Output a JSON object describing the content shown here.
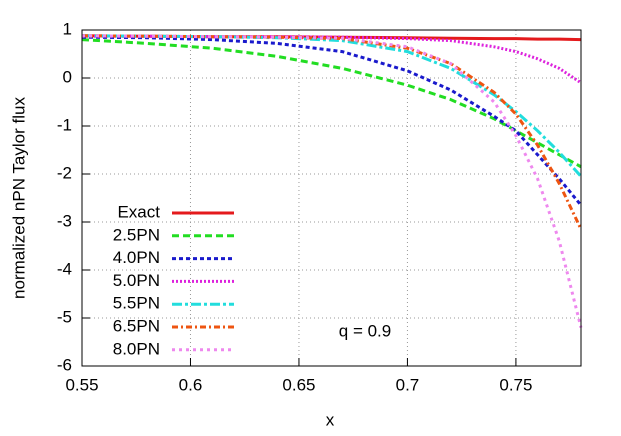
{
  "chart_data": {
    "type": "line",
    "xlabel": "x",
    "ylabel": "normalized nPN Taylor flux",
    "annotation": "q = 0.9",
    "x": [
      0.55,
      0.58,
      0.61,
      0.64,
      0.67,
      0.7,
      0.72,
      0.74,
      0.75,
      0.76,
      0.77,
      0.78
    ],
    "series": [
      {
        "name": "Exact",
        "color": "#e41a1c",
        "values": [
          0.88,
          0.87,
          0.86,
          0.86,
          0.85,
          0.84,
          0.83,
          0.82,
          0.82,
          0.81,
          0.81,
          0.8
        ]
      },
      {
        "name": "2.5PN",
        "color": "#22dd22",
        "values": [
          0.8,
          0.72,
          0.62,
          0.45,
          0.2,
          -0.15,
          -0.45,
          -0.85,
          -1.1,
          -1.35,
          -1.6,
          -1.85
        ]
      },
      {
        "name": "4.0PN",
        "color": "#1a1acc",
        "values": [
          0.85,
          0.84,
          0.8,
          0.72,
          0.55,
          0.15,
          -0.25,
          -0.8,
          -1.1,
          -1.6,
          -2.1,
          -2.65
        ]
      },
      {
        "name": "5.0PN",
        "color": "#dd22dd",
        "values": [
          0.87,
          0.87,
          0.86,
          0.86,
          0.85,
          0.82,
          0.78,
          0.65,
          0.55,
          0.4,
          0.2,
          -0.1
        ]
      },
      {
        "name": "5.5PN",
        "color": "#22dddd",
        "values": [
          0.88,
          0.87,
          0.86,
          0.84,
          0.78,
          0.55,
          0.2,
          -0.35,
          -0.7,
          -1.1,
          -1.55,
          -2.05
        ]
      },
      {
        "name": "6.5PN",
        "color": "#ee5511",
        "values": [
          0.88,
          0.87,
          0.86,
          0.85,
          0.82,
          0.62,
          0.3,
          -0.3,
          -0.75,
          -1.4,
          -2.2,
          -3.15
        ]
      },
      {
        "name": "8.0PN",
        "color": "#ee88ee",
        "values": [
          0.88,
          0.87,
          0.86,
          0.85,
          0.83,
          0.65,
          0.3,
          -0.5,
          -1.2,
          -2.1,
          -3.4,
          -5.2
        ]
      }
    ],
    "xlim": [
      0.55,
      0.78
    ],
    "ylim": [
      -6,
      1
    ],
    "xticks": [
      0.55,
      0.6,
      0.65,
      0.7,
      0.75
    ],
    "yticks": [
      -6,
      -5,
      -4,
      -3,
      -2,
      -1,
      0,
      1
    ],
    "grid": true,
    "legend": "lower left"
  }
}
